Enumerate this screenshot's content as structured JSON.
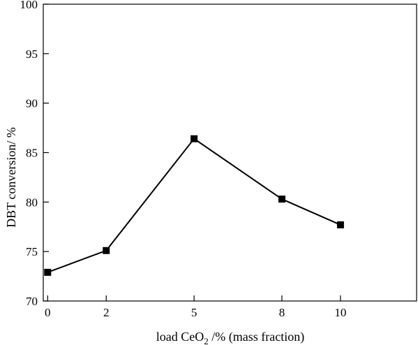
{
  "chart_data": {
    "type": "line",
    "xlabel": "load CeO",
    "xlabel_subscript": "2",
    "xlabel_suffix": " /% (mass fraction)",
    "ylabel": "DBT conversion/ %",
    "x": [
      0,
      2,
      5,
      8,
      10
    ],
    "x_tick_labels": [
      "0",
      "2",
      "5",
      "8",
      "10"
    ],
    "series": [
      {
        "values": [
          72.9,
          75.1,
          86.4,
          80.3,
          77.7
        ]
      }
    ],
    "ylim": [
      70,
      100
    ],
    "y_ticks": [
      70,
      75,
      80,
      85,
      90,
      95,
      100
    ],
    "y_tick_labels": [
      "70",
      "75",
      "80",
      "85",
      "90",
      "95",
      "100"
    ],
    "grid": false,
    "marker": "square",
    "line_color": "#000000"
  }
}
